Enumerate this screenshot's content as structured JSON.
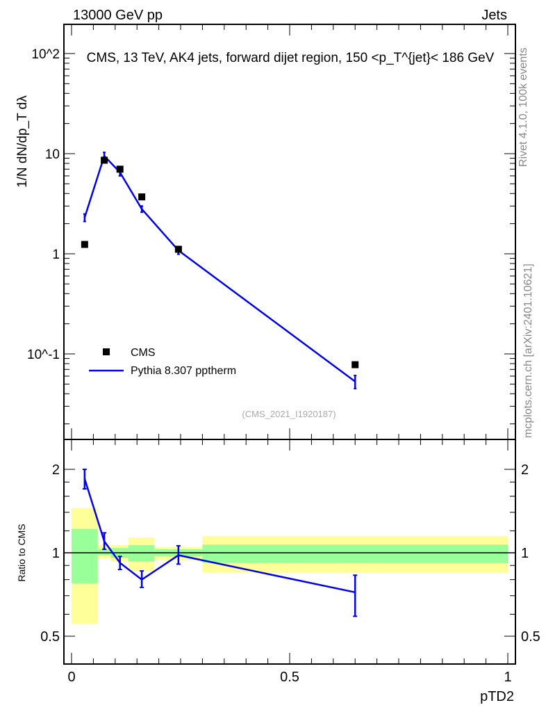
{
  "header": {
    "left": "13000 GeV pp",
    "right": "Jets"
  },
  "side": {
    "rivet": "Rivet 4.1.0,  100k events",
    "mcplots": "mcplots.cern.ch [arXiv:2401.10621]"
  },
  "chart_data": [
    {
      "type": "line",
      "title": "CMS, 13 TeV, AK4 jets, forward dijet region, 150 <p_T^{jet}< 186 GeV",
      "ylabel": "1/N dN/dp_T dλ",
      "yscale": "log",
      "ylim": [
        0.014,
        195
      ],
      "xlim": [
        -0.02,
        1.02
      ],
      "yticks": [
        {
          "v": 100,
          "l": "10^2"
        },
        {
          "v": 10,
          "l": "10"
        },
        {
          "v": 1,
          "l": "1"
        },
        {
          "v": 0.1,
          "l": "10^-1"
        }
      ],
      "watermark": "(CMS_2021_I1920187)",
      "legend_position": "bottom-left",
      "x": [
        0.03,
        0.075,
        0.111,
        0.161,
        0.245,
        0.65
      ],
      "series": [
        {
          "name": "CMS",
          "style": "marker",
          "color": "#000000",
          "values": [
            1.24,
            8.6,
            7.0,
            3.7,
            1.11,
            0.078
          ]
        },
        {
          "name": "Pythia 8.307 pptherm",
          "style": "line",
          "color": "#0000ee",
          "values": [
            2.3,
            9.5,
            6.5,
            2.8,
            1.08,
            0.053
          ],
          "err": [
            0.2,
            0.8,
            0.5,
            0.2,
            0.09,
            0.008
          ]
        }
      ]
    },
    {
      "type": "line",
      "ylabel": "Ratio to CMS",
      "xlabel": "pTD2",
      "yscale": "log",
      "ylim": [
        0.4,
        2.56
      ],
      "yticks": [
        {
          "v": 2,
          "l": "2"
        },
        {
          "v": 1,
          "l": "1"
        },
        {
          "v": 0.5,
          "l": "0.5"
        }
      ],
      "xticks": [
        {
          "v": 0,
          "l": "0"
        },
        {
          "v": 0.5,
          "l": "0.5"
        },
        {
          "v": 1,
          "l": "1"
        }
      ],
      "bands": {
        "edges": [
          0,
          0.06,
          0.09,
          0.13,
          0.19,
          0.3,
          1.0
        ],
        "yellow_colour": "#ffff99",
        "green_colour": "#99ff99",
        "yellow": [
          [
            0.555,
            1.45
          ],
          [
            0.955,
            1.065
          ],
          [
            0.93,
            1.065
          ],
          [
            0.86,
            1.135
          ],
          [
            0.94,
            1.05
          ],
          [
            0.85,
            1.15
          ]
        ],
        "green": [
          [
            0.776,
            1.22
          ],
          [
            0.98,
            1.03
          ],
          [
            0.96,
            1.04
          ],
          [
            0.93,
            1.065
          ],
          [
            0.97,
            1.03
          ],
          [
            0.92,
            1.07
          ]
        ]
      },
      "x": [
        0.03,
        0.075,
        0.111,
        0.161,
        0.245,
        0.65
      ],
      "series": [
        {
          "name": "Pythia 8.307 pptherm / CMS",
          "color": "#0000ee",
          "values": [
            1.85,
            1.1,
            0.92,
            0.8,
            0.98,
            0.72
          ],
          "lo": [
            1.7,
            1.03,
            0.87,
            0.75,
            0.91,
            0.59
          ],
          "hi": [
            2.0,
            1.18,
            0.97,
            0.86,
            1.06,
            0.83
          ]
        }
      ]
    }
  ]
}
